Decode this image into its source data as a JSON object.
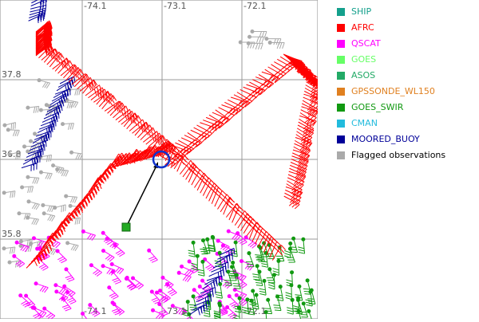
{
  "map": {
    "lon_labels_top": [
      "-74.1",
      "-73.1",
      "-72.1"
    ],
    "lat_labels_left": [
      "37.8",
      "36.8",
      "35.8"
    ],
    "lon_labels_bottom": [
      "-74.1",
      "-73.1",
      "-72.1"
    ]
  },
  "legend": {
    "items": [
      {
        "label": "SHIP",
        "color": "#14a08c"
      },
      {
        "label": "AFRC",
        "color": "#ff0000"
      },
      {
        "label": "QSCAT",
        "color": "#ff00ff"
      },
      {
        "label": "GOES",
        "color": "#66ff66"
      },
      {
        "label": "ASOS",
        "color": "#22aa66"
      },
      {
        "label": "GPSSONDE_WL150",
        "color": "#e08020"
      },
      {
        "label": "GOES_SWIR",
        "color": "#119911"
      },
      {
        "label": "CMAN",
        "color": "#22bbdd"
      },
      {
        "label": "MOORED_BUOY",
        "color": "#000099"
      },
      {
        "label": "Flagged observations",
        "color": "#aaaaaa",
        "text_color": "#000000"
      }
    ]
  }
}
